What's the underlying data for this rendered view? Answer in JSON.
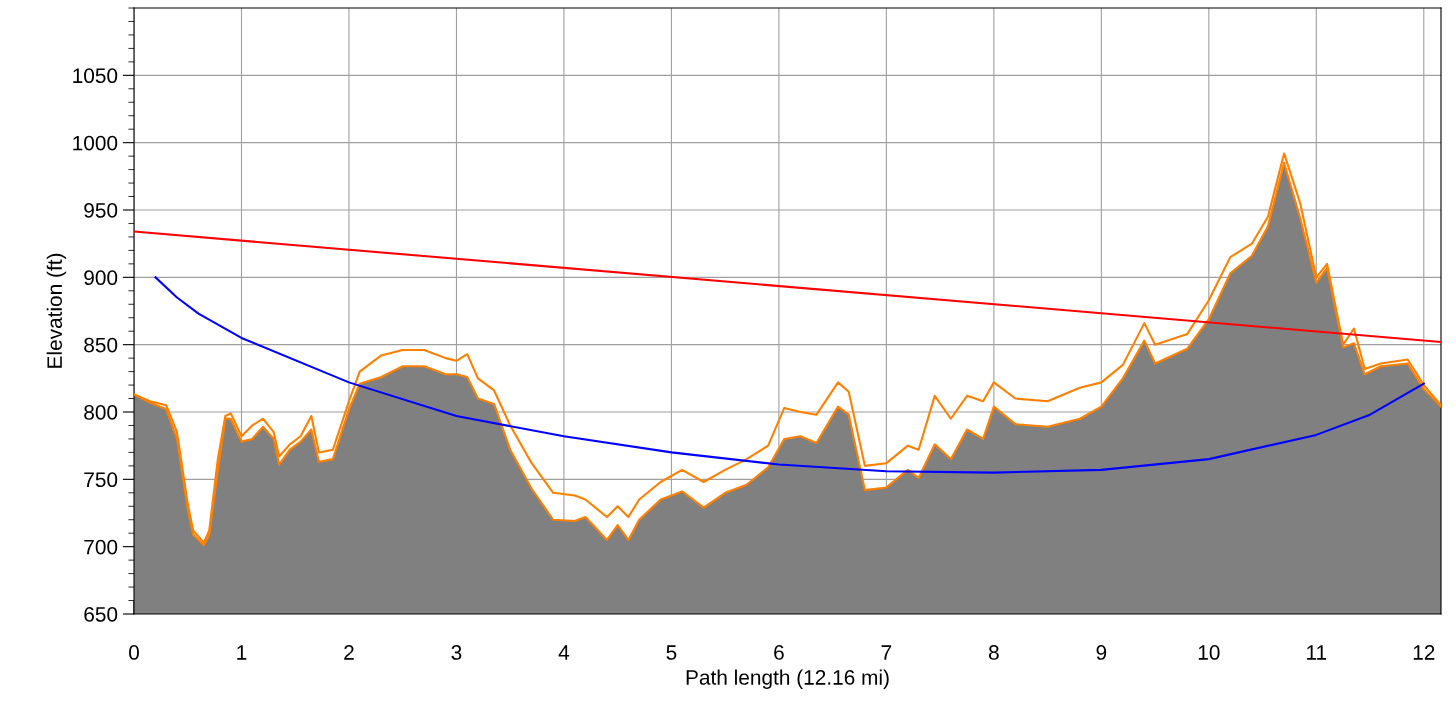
{
  "chart_data": {
    "type": "line",
    "xlabel": "Path length (12.16 mi)",
    "ylabel": "Elevation (ft)",
    "xlim": [
      0,
      12.16
    ],
    "xticks": [
      0,
      1,
      2,
      3,
      4,
      5,
      6,
      7,
      8,
      9,
      10,
      11,
      12
    ],
    "ylim": [
      650,
      1100
    ],
    "yticks": [
      650,
      700,
      750,
      800,
      850,
      900,
      950,
      1000,
      1050
    ],
    "grid": true,
    "legend": false,
    "marker": "none",
    "line_style": "solid",
    "series": [
      {
        "type": "area",
        "color": "#808080",
        "x": [
          0,
          0.15,
          0.3,
          0.4,
          0.5,
          0.55,
          0.65,
          0.7,
          0.78,
          0.85,
          0.9,
          1.0,
          1.1,
          1.2,
          1.3,
          1.35,
          1.45,
          1.55,
          1.65,
          1.72,
          1.85,
          2.0,
          2.1,
          2.3,
          2.5,
          2.7,
          2.9,
          3.0,
          3.1,
          3.2,
          3.35,
          3.5,
          3.7,
          3.9,
          4.1,
          4.2,
          4.4,
          4.5,
          4.6,
          4.7,
          4.9,
          5.1,
          5.3,
          5.5,
          5.7,
          5.9,
          6.05,
          6.2,
          6.35,
          6.55,
          6.65,
          6.8,
          7.0,
          7.2,
          7.3,
          7.45,
          7.6,
          7.75,
          7.9,
          8.0,
          8.2,
          8.5,
          8.8,
          9.0,
          9.2,
          9.4,
          9.5,
          9.8,
          10.0,
          10.2,
          10.4,
          10.55,
          10.7,
          10.85,
          11.0,
          11.1,
          11.25,
          11.35,
          11.45,
          11.6,
          11.85,
          12.0,
          12.16
        ],
        "values": [
          813,
          807,
          802,
          780,
          728,
          709,
          701,
          709,
          757,
          795,
          795,
          778,
          780,
          789,
          780,
          761,
          772,
          778,
          787,
          763,
          765,
          802,
          821,
          826,
          834,
          834,
          828,
          828,
          826,
          810,
          806,
          772,
          743,
          720,
          719,
          722,
          705,
          716,
          705,
          720,
          735,
          741,
          729,
          740,
          746,
          759,
          780,
          782,
          777,
          804,
          798,
          742,
          744,
          757,
          751,
          776,
          765,
          787,
          780,
          804,
          791,
          789,
          795,
          804,
          825,
          853,
          836,
          847,
          869,
          903,
          916,
          938,
          985,
          944,
          896,
          907,
          848,
          851,
          828,
          834,
          836,
          817,
          804
        ]
      },
      {
        "color": "#ff8000",
        "x": [
          0,
          0.15,
          0.3,
          0.4,
          0.5,
          0.55,
          0.65,
          0.7,
          0.78,
          0.85,
          0.9,
          1.0,
          1.1,
          1.2,
          1.3,
          1.35,
          1.45,
          1.55,
          1.65,
          1.72,
          1.85,
          2.0,
          2.1,
          2.3,
          2.5,
          2.7,
          2.9,
          3.0,
          3.1,
          3.2,
          3.35,
          3.5,
          3.7,
          3.9,
          4.1,
          4.2,
          4.4,
          4.5,
          4.6,
          4.7,
          4.9,
          5.1,
          5.3,
          5.5,
          5.7,
          5.9,
          6.05,
          6.2,
          6.35,
          6.55,
          6.65,
          6.8,
          7.0,
          7.2,
          7.3,
          7.45,
          7.6,
          7.75,
          7.9,
          8.0,
          8.2,
          8.5,
          8.8,
          9.0,
          9.2,
          9.4,
          9.5,
          9.8,
          10.0,
          10.2,
          10.4,
          10.55,
          10.7,
          10.85,
          11.0,
          11.1,
          11.25,
          11.35,
          11.45,
          11.6,
          11.85,
          12.0,
          12.16
        ],
        "values": [
          813,
          808,
          805,
          785,
          732,
          712,
          703,
          712,
          765,
          797,
          799,
          782,
          790,
          795,
          785,
          767,
          776,
          782,
          797,
          770,
          772,
          808,
          830,
          842,
          846,
          846,
          840,
          838,
          843,
          825,
          816,
          790,
          762,
          740,
          738,
          735,
          722,
          730,
          722,
          735,
          748,
          757,
          748,
          757,
          765,
          775,
          803,
          800,
          798,
          822,
          815,
          760,
          762,
          775,
          772,
          812,
          795,
          812,
          808,
          822,
          810,
          808,
          818,
          822,
          835,
          866,
          850,
          858,
          883,
          915,
          925,
          945,
          992,
          955,
          900,
          910,
          850,
          862,
          832,
          836,
          839,
          820,
          805
        ]
      },
      {
        "color": "#ff0000",
        "x": [
          0,
          12.16
        ],
        "values": [
          934,
          852
        ]
      },
      {
        "color": "#0000ff",
        "x": [
          0.2,
          0.4,
          0.6,
          1,
          2,
          3,
          4,
          5,
          6,
          7,
          8,
          9,
          10,
          11,
          11.5,
          12
        ],
        "values": [
          900,
          885,
          873,
          855,
          822,
          797,
          782,
          770,
          761,
          756,
          755,
          757,
          765,
          783,
          798,
          821
        ]
      }
    ]
  }
}
